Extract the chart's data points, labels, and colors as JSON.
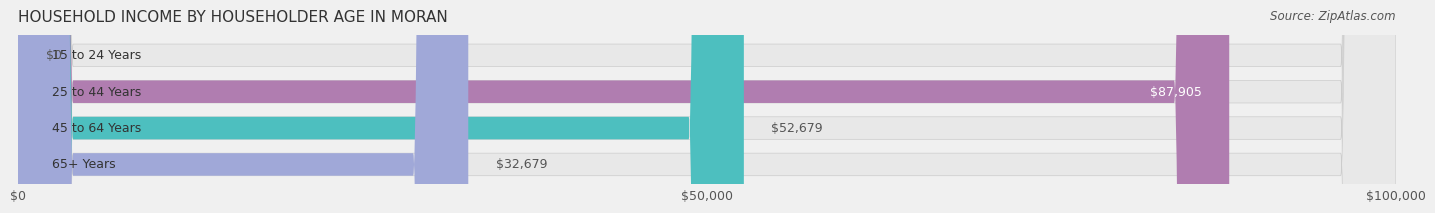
{
  "title": "HOUSEHOLD INCOME BY HOUSEHOLDER AGE IN MORAN",
  "source": "Source: ZipAtlas.com",
  "categories": [
    "15 to 24 Years",
    "25 to 44 Years",
    "45 to 64 Years",
    "65+ Years"
  ],
  "values": [
    0,
    87905,
    52679,
    32679
  ],
  "bar_colors": [
    "#a8d4e6",
    "#b07db0",
    "#4dbfbf",
    "#a0a8d8"
  ],
  "bar_label_colors": [
    "#555555",
    "#ffffff",
    "#333333",
    "#333333"
  ],
  "labels": [
    "$0",
    "$87,905",
    "$52,679",
    "$32,679"
  ],
  "xlim": [
    0,
    100000
  ],
  "xticks": [
    0,
    50000,
    100000
  ],
  "xtick_labels": [
    "$0",
    "$50,000",
    "$100,000"
  ],
  "background_color": "#f0f0f0",
  "bar_bg_color": "#e8e8e8",
  "title_fontsize": 11,
  "source_fontsize": 8.5,
  "label_fontsize": 9,
  "tick_fontsize": 9,
  "category_fontsize": 9
}
